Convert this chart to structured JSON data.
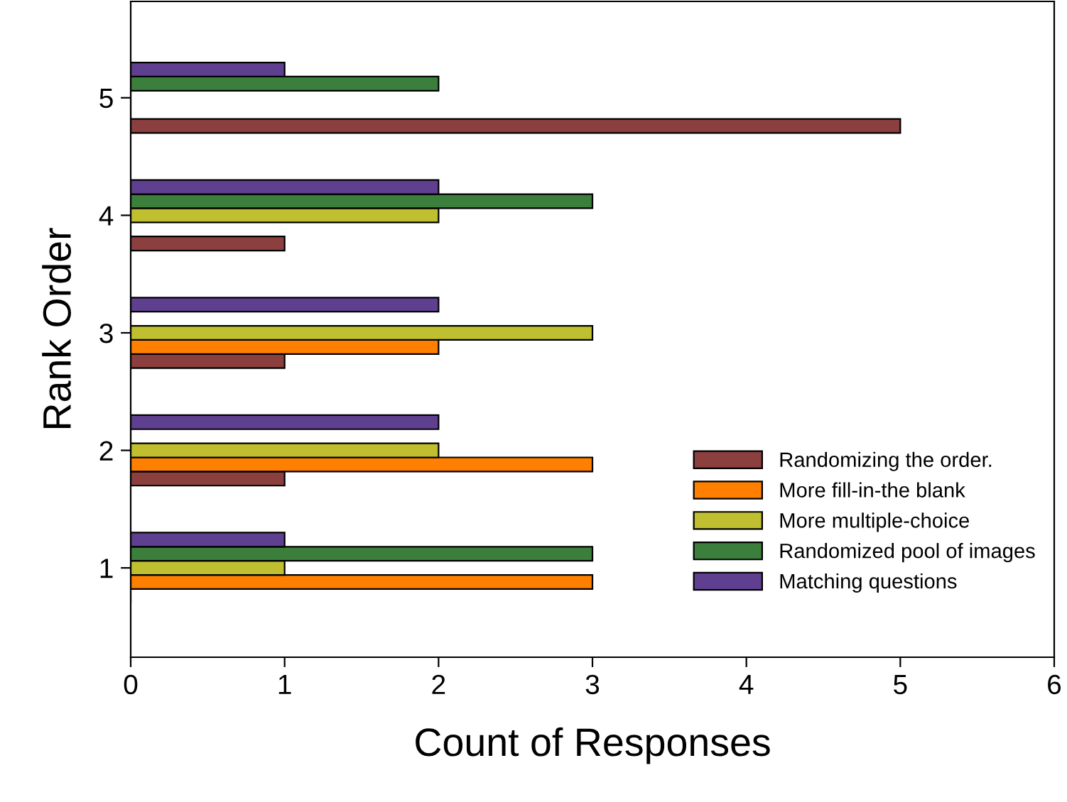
{
  "chart_data": {
    "type": "bar",
    "orientation": "horizontal",
    "xlabel": "Count of Responses",
    "ylabel": "Rank Order",
    "categories": [
      "5",
      "4",
      "3",
      "2",
      "1"
    ],
    "series": [
      {
        "name": "Randomizing the order.",
        "color": "#8b3f3f",
        "values": [
          5,
          1,
          1,
          1,
          0
        ]
      },
      {
        "name": "More fill-in-the blank",
        "color": "#ff8000",
        "values": [
          0,
          0,
          2,
          3,
          3
        ]
      },
      {
        "name": "More multiple-choice",
        "color": "#bfbf30",
        "values": [
          0,
          2,
          3,
          2,
          1
        ]
      },
      {
        "name": "Randomized pool of images",
        "color": "#3c7f3c",
        "values": [
          2,
          3,
          0,
          0,
          3
        ]
      },
      {
        "name": "Matching questions",
        "color": "#5f3f8f",
        "values": [
          1,
          2,
          2,
          2,
          1
        ]
      }
    ],
    "xlim": [
      0,
      6
    ],
    "xticks": [
      0,
      1,
      2,
      3,
      4,
      5,
      6
    ],
    "grid": false,
    "legend": "bottom right"
  }
}
